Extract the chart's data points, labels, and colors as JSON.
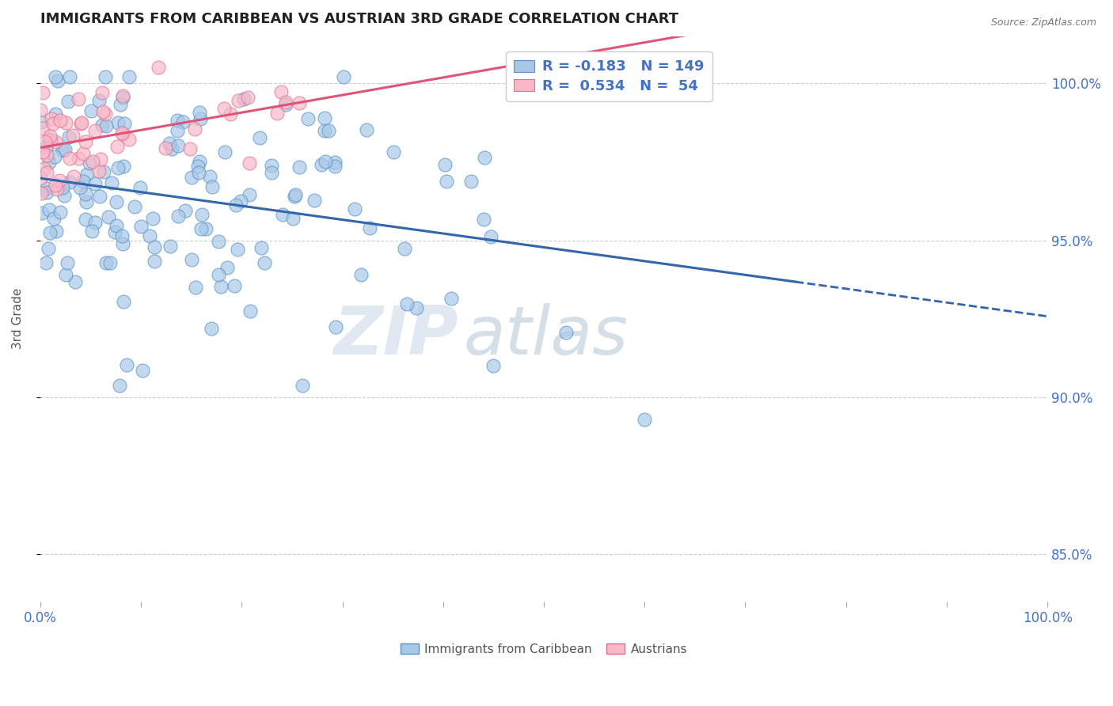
{
  "title": "IMMIGRANTS FROM CARIBBEAN VS AUSTRIAN 3RD GRADE CORRELATION CHART",
  "source": "Source: ZipAtlas.com",
  "ylabel": "3rd Grade",
  "xlim": [
    0.0,
    1.0
  ],
  "ylim": [
    0.835,
    1.015
  ],
  "yticks": [
    0.85,
    0.9,
    0.95,
    1.0
  ],
  "ytick_labels": [
    "85.0%",
    "90.0%",
    "95.0%",
    "100.0%"
  ],
  "legend_r_blue": "-0.183",
  "legend_n_blue": "149",
  "legend_r_pink": "0.534",
  "legend_n_pink": "54",
  "blue_color": "#a8c8e8",
  "blue_edge_color": "#5590c8",
  "blue_line_color": "#3366aa",
  "pink_color": "#f8b8c8",
  "pink_edge_color": "#e07090",
  "pink_line_color": "#dd5577",
  "watermark_zip": "ZIP",
  "watermark_atlas": "atlas",
  "title_fontsize": 13,
  "legend_fontsize": 13
}
